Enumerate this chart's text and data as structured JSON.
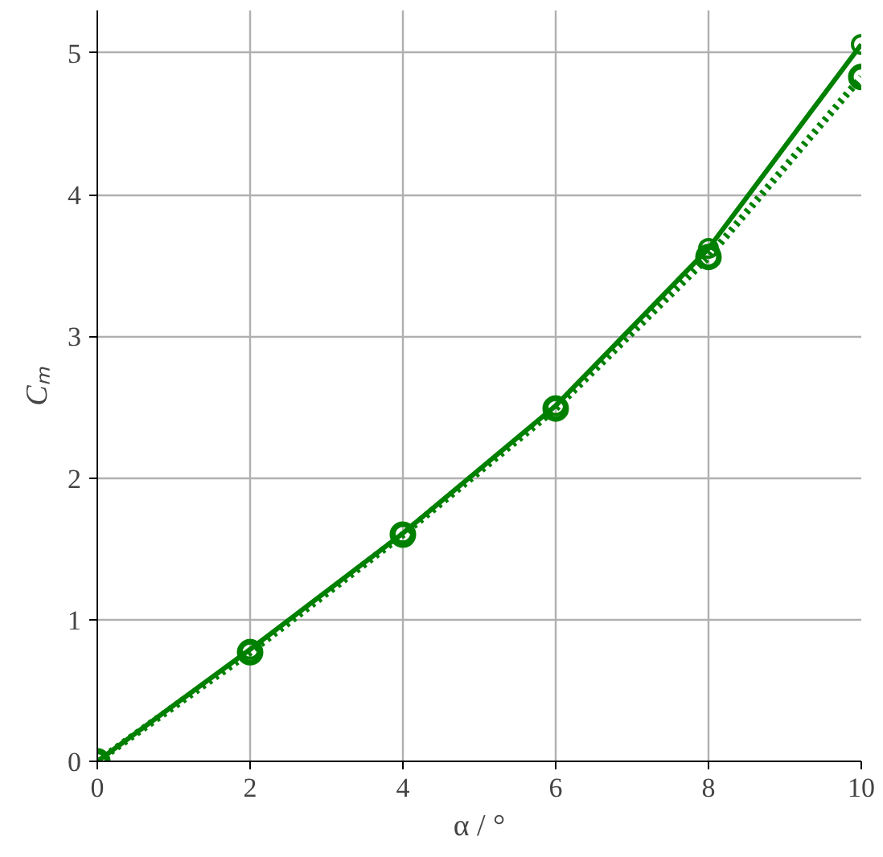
{
  "chart_data": {
    "type": "line",
    "xlabel": "α / °",
    "ylabel": "Cₘ",
    "x": [
      0,
      2,
      4,
      6,
      8,
      10
    ],
    "series": [
      {
        "color": "#008000",
        "line_style": "dotted",
        "values": [
          0,
          0.77,
          1.6,
          2.49,
          3.56,
          4.83
        ]
      },
      {
        "color": "#008000",
        "line_style": "solid",
        "values": [
          0,
          0.79,
          1.61,
          2.51,
          3.62,
          5.06
        ]
      }
    ],
    "marker": "circle",
    "xlim": [
      0,
      10
    ],
    "xticks": [
      0,
      2,
      4,
      6,
      8,
      10
    ],
    "ylim": [
      0,
      5.3
    ],
    "yticks": [
      0,
      1,
      2,
      3,
      4,
      5
    ],
    "grid": true
  }
}
